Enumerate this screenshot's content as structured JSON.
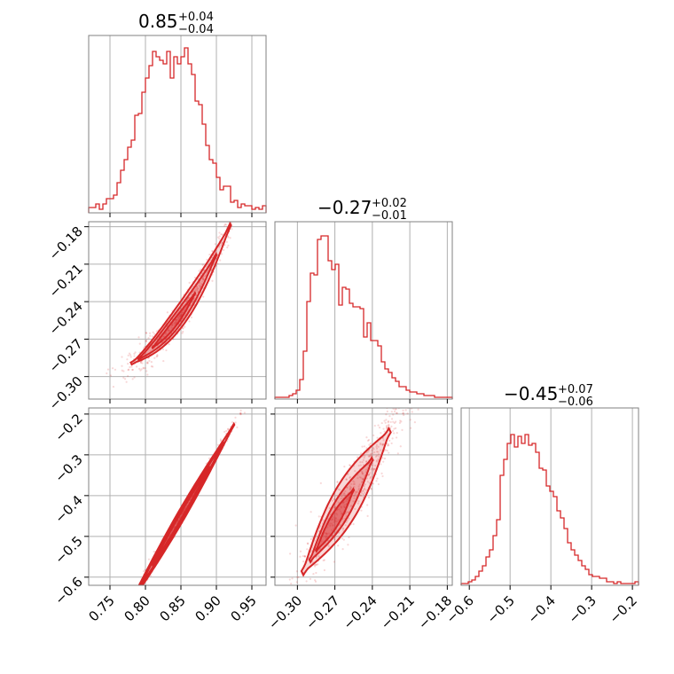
{
  "chart_data": {
    "type": "corner",
    "color": "#d62728",
    "grid": true,
    "parameters": [
      {
        "range": [
          0.72,
          0.97
        ],
        "ticks": [
          "0.75",
          "0.80",
          "0.85",
          "0.90",
          "0.95"
        ],
        "tick_values": [
          0.75,
          0.8,
          0.85,
          0.9,
          0.95
        ],
        "title": {
          "median": "0.85",
          "plus": "+0.04",
          "minus": "−0.04"
        },
        "histogram": [
          0.03,
          0.03,
          0.05,
          0.02,
          0.05,
          0.08,
          0.08,
          0.1,
          0.17,
          0.24,
          0.3,
          0.37,
          0.41,
          0.55,
          0.56,
          0.68,
          0.76,
          0.83,
          0.91,
          0.88,
          0.86,
          0.84,
          0.91,
          0.76,
          0.88,
          0.84,
          0.88,
          0.93,
          0.84,
          0.78,
          0.63,
          0.61,
          0.5,
          0.38,
          0.3,
          0.28,
          0.2,
          0.13,
          0.15,
          0.15,
          0.06,
          0.07,
          0.03,
          0.05,
          0.04,
          0.04,
          0.02,
          0.03,
          0.02,
          0.04
        ]
      },
      {
        "range": [
          -0.318,
          -0.176
        ],
        "ticks": [
          "−0.30",
          "−0.27",
          "−0.24",
          "−0.21",
          "−0.18"
        ],
        "tick_values": [
          -0.3,
          -0.27,
          -0.24,
          -0.21,
          -0.18
        ],
        "title": {
          "median": "−0.27",
          "plus": "+0.02",
          "minus": "−0.01"
        },
        "histogram": [
          0.01,
          0.01,
          0.01,
          0.01,
          0.02,
          0.03,
          0.05,
          0.11,
          0.27,
          0.55,
          0.71,
          0.7,
          0.9,
          0.92,
          0.92,
          0.78,
          0.73,
          0.76,
          0.53,
          0.63,
          0.62,
          0.54,
          0.52,
          0.52,
          0.51,
          0.35,
          0.43,
          0.33,
          0.33,
          0.3,
          0.21,
          0.17,
          0.15,
          0.12,
          0.1,
          0.07,
          0.07,
          0.05,
          0.04,
          0.04,
          0.03,
          0.03,
          0.02,
          0.02,
          0.02,
          0.01,
          0.01,
          0.01,
          0.01,
          0.01
        ]
      },
      {
        "range": [
          -0.62,
          -0.185
        ],
        "ticks": [
          "−0.6",
          "−0.5",
          "−0.4",
          "−0.3",
          "−0.2"
        ],
        "tick_values": [
          -0.6,
          -0.5,
          -0.4,
          -0.3,
          -0.2
        ],
        "title": {
          "median": "−0.45",
          "plus": "+0.07",
          "minus": "−0.06"
        },
        "histogram": [
          0.01,
          0.01,
          0.02,
          0.03,
          0.05,
          0.08,
          0.11,
          0.16,
          0.2,
          0.28,
          0.37,
          0.62,
          0.71,
          0.8,
          0.85,
          0.78,
          0.84,
          0.8,
          0.85,
          0.79,
          0.8,
          0.75,
          0.66,
          0.65,
          0.56,
          0.53,
          0.5,
          0.42,
          0.38,
          0.32,
          0.24,
          0.2,
          0.17,
          0.14,
          0.11,
          0.09,
          0.06,
          0.05,
          0.05,
          0.04,
          0.04,
          0.02,
          0.02,
          0.01,
          0.02,
          0.01,
          0.01,
          0.01,
          0.01,
          0.02
        ]
      }
    ]
  }
}
